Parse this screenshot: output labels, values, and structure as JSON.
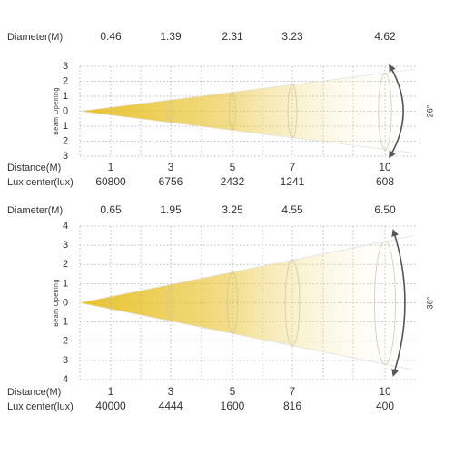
{
  "palette": {
    "beam_core": "#e8c22a",
    "beam_edge": "#ffffff",
    "grid": "#a8a8a8",
    "axis_text": "#333333",
    "arrow": "#555555"
  },
  "panels": [
    {
      "diameter_label": "Diameter(M)",
      "diameters": [
        "0.46",
        "1.39",
        "2.31",
        "3.23",
        "4.62"
      ],
      "y_axis_title": "Beam Opening",
      "y_ticks": [
        "3",
        "2",
        "1",
        "0",
        "1",
        "2",
        "3"
      ],
      "distance_label": "Distance(M)",
      "distances": [
        "1",
        "3",
        "5",
        "7",
        "10"
      ],
      "lux_label": "Lux center(lux)",
      "lux": [
        "60800",
        "6756",
        "2432",
        "1241",
        "608"
      ],
      "angle": "26°"
    },
    {
      "diameter_label": "Diameter(M)",
      "diameters": [
        "0.65",
        "1.95",
        "3.25",
        "4.55",
        "6.50"
      ],
      "y_axis_title": "Beam Opening",
      "y_ticks": [
        "4",
        "3",
        "2",
        "1",
        "0",
        "1",
        "2",
        "3",
        "4"
      ],
      "distance_label": "Distance(M)",
      "distances": [
        "1",
        "3",
        "5",
        "7",
        "10"
      ],
      "lux_label": "Lux center(lux)",
      "lux": [
        "40000",
        "4444",
        "1600",
        "816",
        "400"
      ],
      "angle": "36°"
    }
  ]
}
